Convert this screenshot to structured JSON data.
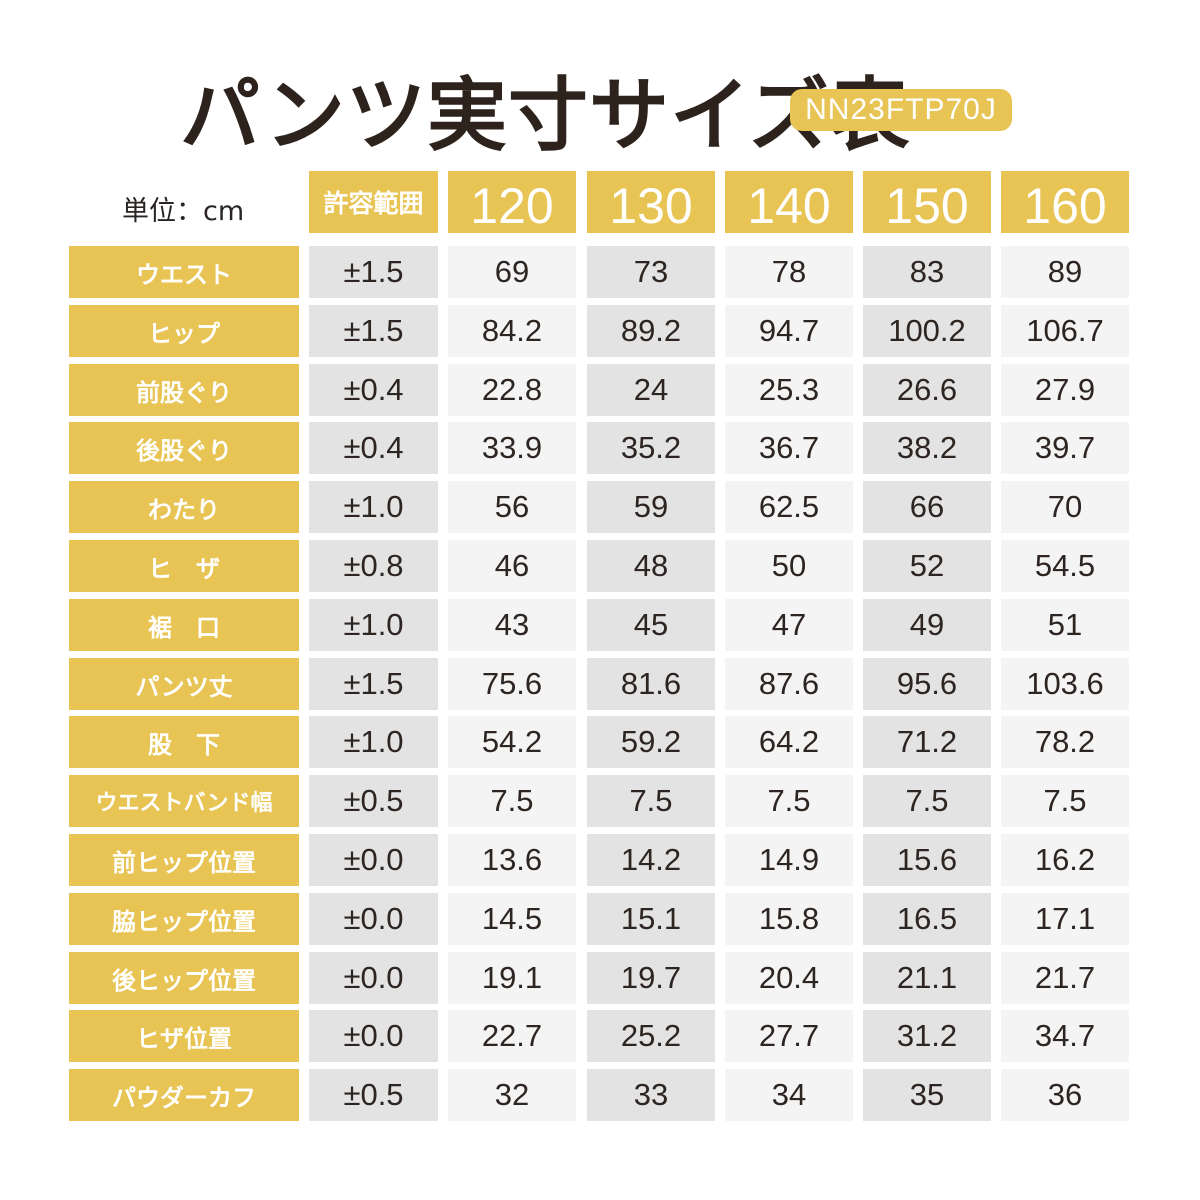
{
  "title": "パンツ実寸サイズ表",
  "model_code": "NN23FTP70J",
  "unit_label": "単位：cm",
  "header": {
    "tolerance_label": "許容範囲",
    "sizes": [
      "120",
      "130",
      "140",
      "150",
      "160"
    ]
  },
  "rows": [
    {
      "label": "ウエスト",
      "tolerance": "±1.5",
      "values": [
        "69",
        "73",
        "78",
        "83",
        "89"
      ]
    },
    {
      "label": "ヒップ",
      "tolerance": "±1.5",
      "values": [
        "84.2",
        "89.2",
        "94.7",
        "100.2",
        "106.7"
      ]
    },
    {
      "label": "前股ぐり",
      "tolerance": "±0.4",
      "values": [
        "22.8",
        "24",
        "25.3",
        "26.6",
        "27.9"
      ]
    },
    {
      "label": "後股ぐり",
      "tolerance": "±0.4",
      "values": [
        "33.9",
        "35.2",
        "36.7",
        "38.2",
        "39.7"
      ]
    },
    {
      "label": "わたり",
      "tolerance": "±1.0",
      "values": [
        "56",
        "59",
        "62.5",
        "66",
        "70"
      ]
    },
    {
      "label": "ヒ　ザ",
      "tolerance": "±0.8",
      "values": [
        "46",
        "48",
        "50",
        "52",
        "54.5"
      ]
    },
    {
      "label": "裾　口",
      "tolerance": "±1.0",
      "values": [
        "43",
        "45",
        "47",
        "49",
        "51"
      ]
    },
    {
      "label": "パンツ丈",
      "tolerance": "±1.5",
      "values": [
        "75.6",
        "81.6",
        "87.6",
        "95.6",
        "103.6"
      ]
    },
    {
      "label": "股　下",
      "tolerance": "±1.0",
      "values": [
        "54.2",
        "59.2",
        "64.2",
        "71.2",
        "78.2"
      ]
    },
    {
      "label": "ウエストバンド幅",
      "tolerance": "±0.5",
      "values": [
        "7.5",
        "7.5",
        "7.5",
        "7.5",
        "7.5"
      ]
    },
    {
      "label": "前ヒップ位置",
      "tolerance": "±0.0",
      "values": [
        "13.6",
        "14.2",
        "14.9",
        "15.6",
        "16.2"
      ]
    },
    {
      "label": "脇ヒップ位置",
      "tolerance": "±0.0",
      "values": [
        "14.5",
        "15.1",
        "15.8",
        "16.5",
        "17.1"
      ]
    },
    {
      "label": "後ヒップ位置",
      "tolerance": "±0.0",
      "values": [
        "19.1",
        "19.7",
        "20.4",
        "21.1",
        "21.7"
      ]
    },
    {
      "label": "ヒザ位置",
      "tolerance": "±0.0",
      "values": [
        "22.7",
        "25.2",
        "27.7",
        "31.2",
        "34.7"
      ]
    },
    {
      "label": "パウダーカフ",
      "tolerance": "±0.5",
      "values": [
        "32",
        "33",
        "34",
        "35",
        "36"
      ]
    }
  ],
  "colors": {
    "accent": "#e8c454",
    "cell_dark": "#e3e3e3",
    "cell_light": "#f4f4f4",
    "text": "#2d2522"
  }
}
